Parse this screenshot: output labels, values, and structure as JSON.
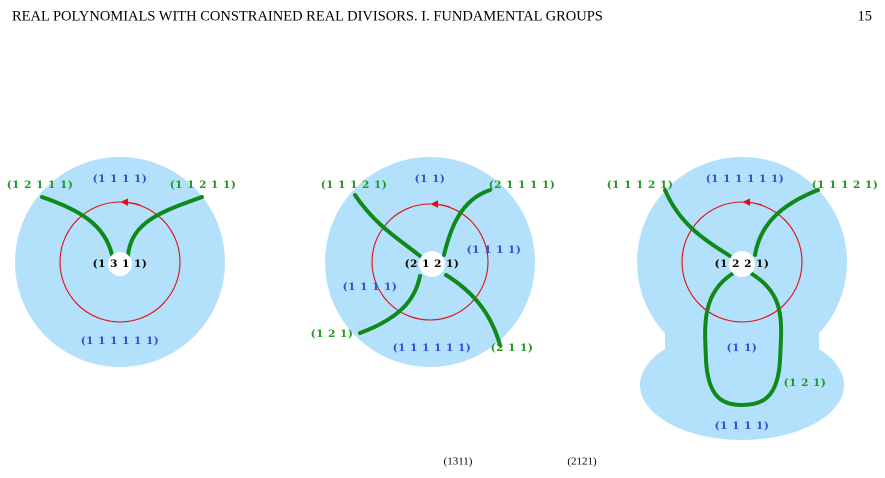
{
  "header": {
    "title": "REAL POLYNOMIALS WITH CONSTRAINED REAL DIVISORS. I. FUNDAMENTAL GROUPS",
    "page": "15"
  },
  "figures": [
    {
      "center": "(1 3 1 1)",
      "labels": [
        "(1 2 1 1 1)",
        "(1 1 1 1)",
        "(1 1 2 1 1)",
        "(1 1 1 1 1 1)"
      ]
    },
    {
      "center": "(2 1 2 1)",
      "labels": [
        "(1 1 1 2 1)",
        "(1 1)",
        "(2 1 1 1 1)",
        "(1 1 1 1)",
        "(1 1 1 1)",
        "(1 2 1)",
        "(1 1 1 1 1 1)",
        "(2 1 1)"
      ]
    },
    {
      "center": "(1 2 2 1)",
      "labels": [
        "(1 1 1 2 1)",
        "(1 1 1 1 1 1)",
        "(1 1 1 2 1)",
        "(1 1)",
        "(1 2 1)",
        "(1 1 1 1)"
      ]
    }
  ],
  "footer_fragments": [
    "(1311)",
    "(2121)"
  ]
}
